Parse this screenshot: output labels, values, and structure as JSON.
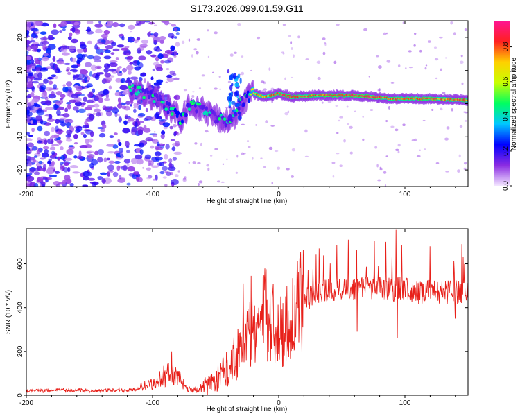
{
  "chart_data": [
    {
      "type": "heatmap",
      "title": "S173.2026.099.01.59.G11",
      "xlabel": "Height of straight line (km)",
      "ylabel": "Frequency (Hz)",
      "xlim": [
        -200,
        150
      ],
      "ylim": [
        -25,
        25
      ],
      "xticks": [
        -200,
        -100,
        0,
        100
      ],
      "yticks": [
        -20,
        -10,
        0,
        10,
        20
      ],
      "colorbar": {
        "label": "Normalized spectral amplitude",
        "range": [
          0.0,
          0.95
        ],
        "ticks": [
          "0.0",
          "0.2",
          "0.4",
          "0.6",
          "0.8"
        ],
        "colors": [
          "#f3e6ff",
          "#8a2be2",
          "#0000ff",
          "#00c8ff",
          "#00ff60",
          "#c8ff00",
          "#ffd000",
          "#ff2020",
          "#ff1493"
        ]
      },
      "ridge": {
        "x": [
          -115,
          -105,
          -95,
          -85,
          -78,
          -70,
          -60,
          -50,
          -42,
          -35,
          -30,
          -25,
          -20,
          -10,
          0,
          10,
          30,
          60,
          90,
          120,
          150
        ],
        "freq": [
          4,
          3,
          1,
          -2,
          -5,
          0,
          -2,
          -4,
          -5,
          -4,
          0,
          2,
          3,
          2,
          3,
          2,
          2.5,
          2.5,
          1.5,
          1.5,
          1
        ],
        "amplitude": [
          0.3,
          0.35,
          0.3,
          0.4,
          0.45,
          0.35,
          0.3,
          0.3,
          0.3,
          0.3,
          0.35,
          0.4,
          0.8,
          0.8,
          0.85,
          0.9,
          0.85,
          0.9,
          0.85,
          0.85,
          0.8
        ]
      }
    },
    {
      "type": "line",
      "title": "",
      "xlabel": "Height of straight line (km)",
      "ylabel": "SNR (10 * v/v)",
      "xlim": [
        -200,
        150
      ],
      "ylim": [
        0,
        760
      ],
      "xticks": [
        -200,
        -100,
        0,
        100
      ],
      "yticks": [
        0,
        200,
        400,
        600
      ],
      "color": "#e8201a",
      "series": [
        {
          "name": "SNR",
          "x": [
            -200,
            -180,
            -160,
            -140,
            -120,
            -110,
            -100,
            -95,
            -90,
            -85,
            -80,
            -75,
            -70,
            -65,
            -60,
            -55,
            -50,
            -45,
            -40,
            -35,
            -30,
            -25,
            -20,
            -15,
            -10,
            -5,
            0,
            5,
            10,
            15,
            20,
            25,
            30,
            40,
            50,
            60,
            70,
            80,
            90,
            100,
            110,
            120,
            130,
            140,
            150
          ],
          "y": [
            20,
            22,
            22,
            20,
            25,
            35,
            50,
            70,
            90,
            100,
            80,
            50,
            25,
            25,
            35,
            50,
            70,
            100,
            130,
            180,
            230,
            270,
            300,
            330,
            370,
            340,
            290,
            310,
            360,
            400,
            430,
            450,
            470,
            480,
            490,
            490,
            495,
            490,
            480,
            490,
            470,
            480,
            470,
            470,
            470
          ],
          "peaks": [
            {
              "x": -85,
              "y": 200
            },
            {
              "x": -28,
              "y": 510
            },
            {
              "x": -22,
              "y": 545
            },
            {
              "x": -10,
              "y": 575
            },
            {
              "x": 32,
              "y": 670
            },
            {
              "x": 55,
              "y": 710
            },
            {
              "x": 85,
              "y": 700
            },
            {
              "x": 93,
              "y": 755
            },
            {
              "x": 120,
              "y": 680
            },
            {
              "x": 145,
              "y": 690
            }
          ],
          "troughs": [
            {
              "x": 62,
              "y": 290
            },
            {
              "x": 94,
              "y": 260
            },
            {
              "x": 140,
              "y": 350
            }
          ]
        }
      ]
    }
  ]
}
